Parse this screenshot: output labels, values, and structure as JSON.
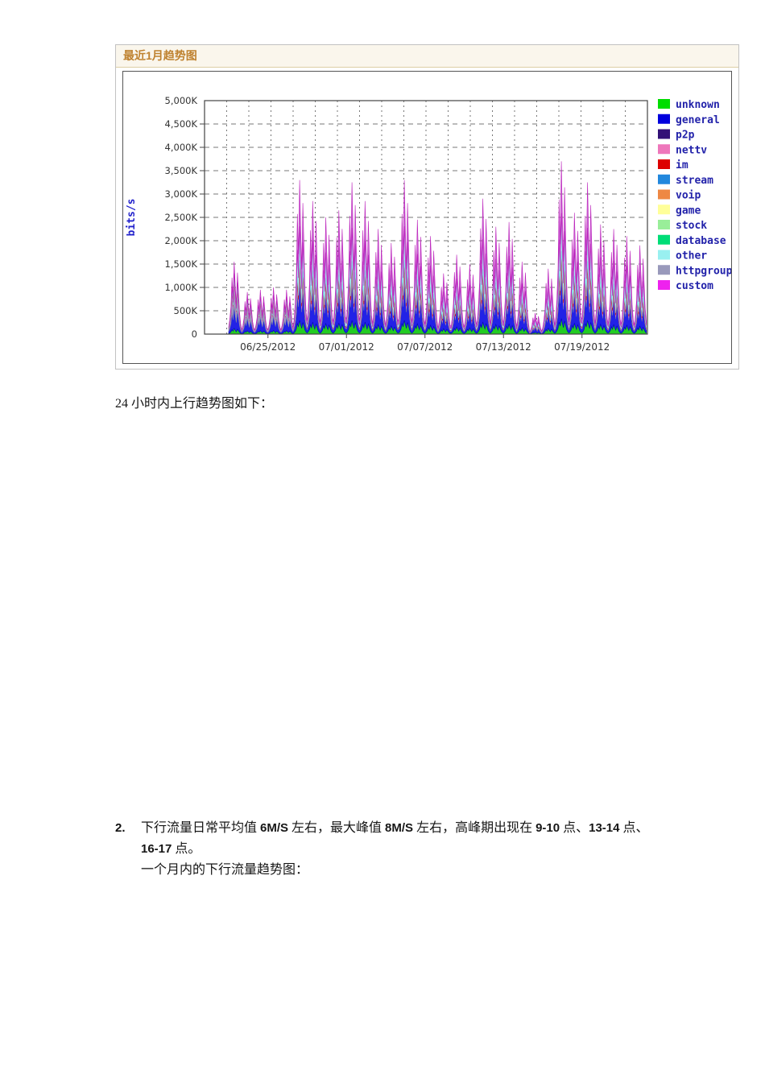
{
  "panel": {
    "title": "最近1月趋势图",
    "title_color": "#BF8230",
    "header_bg": "#FAF6EC"
  },
  "caption_upstream": "24 小时内上行趋势图如下：",
  "item2": {
    "number": "2.",
    "segments": [
      {
        "t": "下行流量日常平均值 ",
        "b": false
      },
      {
        "t": "6M/S",
        "b": true
      },
      {
        "t": " 左右，最大峰值 ",
        "b": false
      },
      {
        "t": "8M/S",
        "b": true
      },
      {
        "t": " 左右，高峰期出现在 ",
        "b": false
      },
      {
        "t": "9-10",
        "b": true
      },
      {
        "t": " 点、",
        "b": false
      },
      {
        "t": "13-14",
        "b": true
      },
      {
        "t": " 点、",
        "b": false
      },
      {
        "t": "16-17",
        "b": true
      },
      {
        "t": " 点。",
        "b": false
      }
    ],
    "line2": "一个月内的下行流量趋势图："
  },
  "chart_data": {
    "type": "area",
    "stacked": true,
    "title": "最近1月趋势图",
    "ylabel": "bits/s",
    "ylabel_color": "#2222CC",
    "y_max_k": 5000,
    "ylim_bits": [
      0,
      5000000
    ],
    "grid": "dashed",
    "legend_position": "right",
    "y_tick_labels": [
      "0",
      "500K",
      "1,000K",
      "1,500K",
      "2,000K",
      "2,500K",
      "3,000K",
      "3,500K",
      "4,000K",
      "4,500K",
      "5,000K"
    ],
    "x_ticks": [
      {
        "label": "06/25/2012",
        "day": 3
      },
      {
        "label": "07/01/2012",
        "day": 9
      },
      {
        "label": "07/07/2012",
        "day": 15
      },
      {
        "label": "07/13/2012",
        "day": 21
      },
      {
        "label": "07/19/2012",
        "day": 27
      }
    ],
    "legend": [
      {
        "name": "unknown",
        "color": "#00DD00"
      },
      {
        "name": "general",
        "color": "#0000DD"
      },
      {
        "name": "p2p",
        "color": "#331177"
      },
      {
        "name": "nettv",
        "color": "#EE77BB"
      },
      {
        "name": "im",
        "color": "#DD0000"
      },
      {
        "name": "stream",
        "color": "#2288DD"
      },
      {
        "name": "voip",
        "color": "#EE8844"
      },
      {
        "name": "game",
        "color": "#FFFF99"
      },
      {
        "name": "stock",
        "color": "#99EE99"
      },
      {
        "name": "database",
        "color": "#00DD77"
      },
      {
        "name": "other",
        "color": "#99F0F0"
      },
      {
        "name": "httpgroup",
        "color": "#9999BB"
      },
      {
        "name": "custom",
        "color": "#EE22EE"
      }
    ],
    "legend_text_color": "#2222AA",
    "stack": [
      {
        "name": "unknown",
        "fill": "#22CC22",
        "edge": "#11AA11"
      },
      {
        "name": "general",
        "fill": "#2222E6",
        "edge": "#0000BB"
      },
      {
        "name": "httpgroup",
        "fill": "#9B9BC0",
        "edge": "#8585AD"
      },
      {
        "name": "nettv",
        "fill": "#EE88CC",
        "edge": "#DD66BB"
      },
      {
        "name": "im",
        "fill": "#DD2222",
        "edge": "#BB1111"
      },
      {
        "name": "other",
        "fill": "#A8ECF2",
        "edge": "#7FD4E0"
      },
      {
        "name": "custom",
        "fill": "#CC66D6",
        "edge": "#BB22BB"
      }
    ],
    "stack_fractions": {
      "calm": {
        "unknown": 0.08,
        "general": 0.3,
        "httpgroup": 0.3,
        "nettv": 0.06,
        "im": 0.02,
        "other": 0.08,
        "custom": 0.16
      },
      "busy": {
        "unknown": 0.09,
        "general": 0.25,
        "httpgroup": 0.05,
        "nettv": 0.04,
        "im": 0.05,
        "other": 0.22,
        "custom": 0.3
      }
    },
    "day_profile": {
      "t": [
        0.0,
        0.08,
        0.17,
        0.25,
        0.33,
        0.42,
        0.5,
        0.58,
        0.67,
        0.75,
        0.83,
        0.92
      ],
      "m": [
        0.1,
        0.2,
        0.38,
        0.78,
        0.52,
        1.0,
        0.68,
        0.42,
        0.85,
        0.58,
        0.3,
        0.14
      ]
    },
    "days": [
      {
        "date": "06/22",
        "peak_k": 1550,
        "mode": "calm"
      },
      {
        "date": "06/23",
        "peak_k": 900,
        "mode": "calm"
      },
      {
        "date": "06/24",
        "peak_k": 950,
        "mode": "calm"
      },
      {
        "date": "06/25",
        "peak_k": 1000,
        "mode": "calm"
      },
      {
        "date": "06/26",
        "peak_k": 950,
        "mode": "calm"
      },
      {
        "date": "06/27",
        "peak_k": 3300,
        "mode": "busy"
      },
      {
        "date": "06/28",
        "peak_k": 2850,
        "mode": "busy"
      },
      {
        "date": "06/29",
        "peak_k": 2500,
        "mode": "busy"
      },
      {
        "date": "06/30",
        "peak_k": 2650,
        "mode": "busy"
      },
      {
        "date": "07/01",
        "peak_k": 3250,
        "mode": "busy"
      },
      {
        "date": "07/02",
        "peak_k": 2850,
        "mode": "busy"
      },
      {
        "date": "07/03",
        "peak_k": 2250,
        "mode": "busy"
      },
      {
        "date": "07/04",
        "peak_k": 1950,
        "mode": "busy"
      },
      {
        "date": "07/05",
        "peak_k": 3300,
        "mode": "busy"
      },
      {
        "date": "07/06",
        "peak_k": 2450,
        "mode": "busy"
      },
      {
        "date": "07/07",
        "peak_k": 2100,
        "mode": "busy"
      },
      {
        "date": "07/08",
        "peak_k": 1300,
        "mode": "busy"
      },
      {
        "date": "07/09",
        "peak_k": 1700,
        "mode": "busy"
      },
      {
        "date": "07/10",
        "peak_k": 1500,
        "mode": "busy"
      },
      {
        "date": "07/11",
        "peak_k": 2900,
        "mode": "busy"
      },
      {
        "date": "07/12",
        "peak_k": 2300,
        "mode": "busy"
      },
      {
        "date": "07/13",
        "peak_k": 2400,
        "mode": "busy"
      },
      {
        "date": "07/14",
        "peak_k": 1550,
        "mode": "busy"
      },
      {
        "date": "07/15",
        "peak_k": 450,
        "mode": "busy"
      },
      {
        "date": "07/16",
        "peak_k": 1400,
        "mode": "busy"
      },
      {
        "date": "07/17",
        "peak_k": 3700,
        "mode": "busy"
      },
      {
        "date": "07/18",
        "peak_k": 2600,
        "mode": "busy"
      },
      {
        "date": "07/19",
        "peak_k": 3250,
        "mode": "busy"
      },
      {
        "date": "07/20",
        "peak_k": 2350,
        "mode": "busy"
      },
      {
        "date": "07/21",
        "peak_k": 2250,
        "mode": "busy"
      },
      {
        "date": "07/22",
        "peak_k": 2100,
        "mode": "busy"
      },
      {
        "date": "07/23",
        "peak_k": 1900,
        "mode": "busy"
      }
    ]
  }
}
